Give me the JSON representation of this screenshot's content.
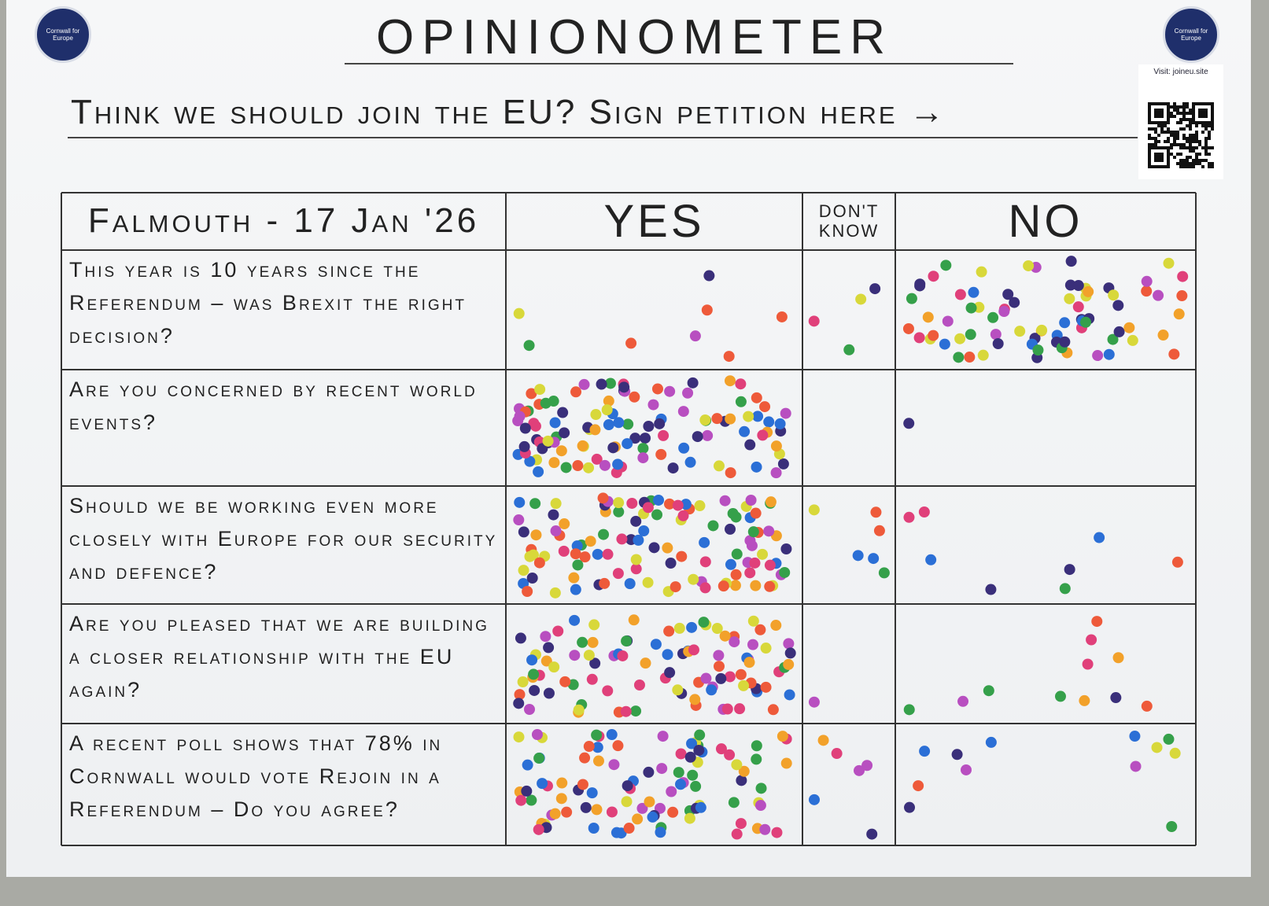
{
  "header": {
    "logo_left": "Cornwall for Europe",
    "logo_right": "Cornwall for Europe",
    "title": "OPINIONOMETER",
    "subtitle": "Think we should join the EU? Sign petition here →",
    "qr_caption": "Visit: joineu.site"
  },
  "table": {
    "columns": [
      "Falmouth - 17 Jan '26",
      "YES",
      "DON'T KNOW",
      "NO"
    ],
    "rows": [
      {
        "question": "This year is 10 years since the Referendum – was Brexit the right decision?",
        "votes": [
          8,
          4,
          75
        ]
      },
      {
        "question": "Are you concerned by recent world events?",
        "votes": [
          110,
          0,
          1
        ]
      },
      {
        "question": "Should we be working even more closely with Europe for our security and defence?",
        "votes": [
          110,
          6,
          8
        ]
      },
      {
        "question": "Are you pleased that we are building a closer relationship with the EU again?",
        "votes": [
          95,
          1,
          11
        ]
      },
      {
        "question": "A recent poll shows that 78% in Cornwall would vote Rejoin in a Referendum – Do you agree?",
        "votes": [
          95,
          6,
          12
        ]
      }
    ]
  },
  "dot_colors": [
    "#e0407a",
    "#2b6fd6",
    "#35a04a",
    "#ee5a3a",
    "#d8d83a",
    "#3a2f7a",
    "#f2a12a",
    "#b84fc0"
  ]
}
